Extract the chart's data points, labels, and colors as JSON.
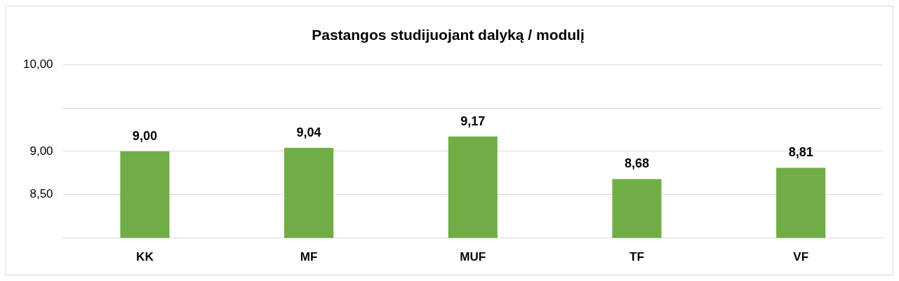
{
  "chart_data": {
    "type": "bar",
    "title": "Pastangos studijuojant dalyką / modulį",
    "categories": [
      "KK",
      "MF",
      "MUF",
      "TF",
      "VF"
    ],
    "values": [
      9.0,
      9.04,
      9.17,
      8.68,
      8.81
    ],
    "value_labels": [
      "9,00",
      "9,04",
      "9,17",
      "8,68",
      "8,81"
    ],
    "color": "#70ad47",
    "ylim": [
      8,
      10
    ],
    "yticks": [
      {
        "value": 8,
        "label": null
      },
      {
        "value": 8.5,
        "label": "8,50"
      },
      {
        "value": 9,
        "label": "9,00"
      },
      {
        "value": 9.5,
        "label": null
      },
      {
        "value": 10,
        "label": "10,00"
      }
    ],
    "grid": true,
    "legend": false
  }
}
